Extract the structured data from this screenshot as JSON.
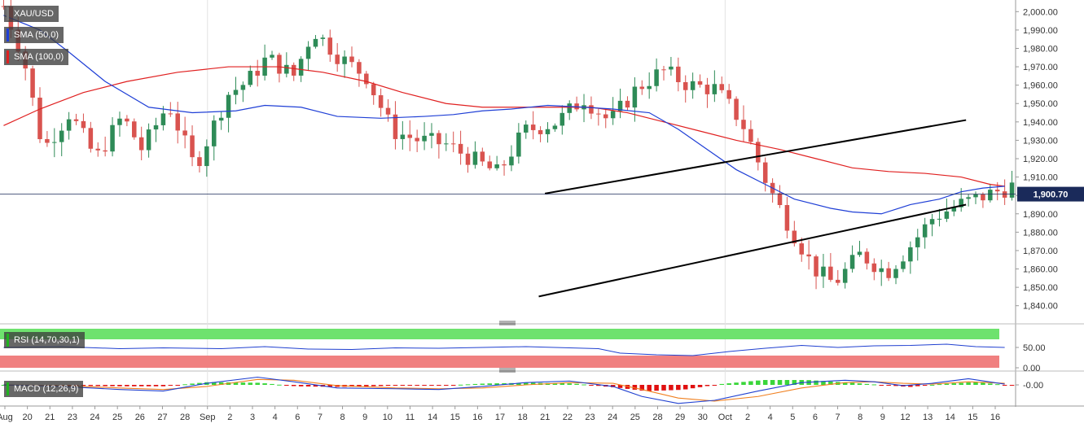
{
  "instrument": "XAU/USD",
  "current_price": "1,900.70",
  "indicators": {
    "sma50": "SMA (50,0)",
    "sma100": "SMA (100,0)",
    "rsi": "RSI (14,70,30,1)",
    "macd": "MACD (12,26,9)"
  },
  "colors": {
    "bull": "#2e8b57",
    "bear": "#d9534f",
    "sma50": "#1f3fd6",
    "sma100": "#e02020",
    "rsi_overbought": "#6ee26e",
    "rsi_oversold": "#f08080",
    "macd_line": "#2040d0",
    "signal_line": "#f08020"
  },
  "chart_data": [
    {
      "type": "candlestick",
      "title": "XAU/USD",
      "ylim": [
        1835,
        2005
      ],
      "y_ticks": [
        "2,000.00",
        "1,990.00",
        "1,980.00",
        "1,970.00",
        "1,960.00",
        "1,950.00",
        "1,940.00",
        "1,930.00",
        "1,920.00",
        "1,910.00",
        "1,900.00",
        "1,890.00",
        "1,880.00",
        "1,870.00",
        "1,860.00",
        "1,850.00",
        "1,840.00"
      ],
      "x_ticks": [
        "Aug",
        "20",
        "21",
        "23",
        "24",
        "25",
        "26",
        "27",
        "28",
        "Sep",
        "2",
        "3",
        "4",
        "6",
        "7",
        "8",
        "9",
        "10",
        "11",
        "14",
        "15",
        "16",
        "17",
        "18",
        "21",
        "22",
        "23",
        "24",
        "25",
        "28",
        "29",
        "30",
        "Oct",
        "2",
        "4",
        "5",
        "6",
        "7",
        "8",
        "9",
        "12",
        "13",
        "14",
        "15",
        "16"
      ],
      "current_price": 1900.7,
      "sma50": [
        [
          0,
          1998
        ],
        [
          5,
          1990
        ],
        [
          9,
          1978
        ],
        [
          14,
          1962
        ],
        [
          20,
          1948
        ],
        [
          26,
          1945
        ],
        [
          32,
          1946
        ],
        [
          36,
          1949
        ],
        [
          41,
          1948
        ],
        [
          46,
          1943
        ],
        [
          52,
          1942
        ],
        [
          58,
          1943
        ],
        [
          62,
          1944
        ],
        [
          66,
          1946
        ],
        [
          70,
          1947
        ],
        [
          75,
          1949
        ],
        [
          80,
          1948
        ],
        [
          84,
          1947
        ],
        [
          89,
          1945
        ],
        [
          93,
          1936
        ],
        [
          97,
          1925
        ],
        [
          101,
          1914
        ],
        [
          105,
          1906
        ],
        [
          109,
          1898
        ],
        [
          114,
          1893
        ],
        [
          117,
          1891
        ],
        [
          121,
          1890
        ],
        [
          125,
          1895
        ],
        [
          129,
          1898
        ],
        [
          132,
          1902
        ],
        [
          135,
          1904
        ],
        [
          138,
          1905
        ]
      ],
      "sma100": [
        [
          0,
          1938
        ],
        [
          5,
          1947
        ],
        [
          11,
          1956
        ],
        [
          17,
          1962
        ],
        [
          24,
          1967
        ],
        [
          31,
          1970
        ],
        [
          38,
          1970
        ],
        [
          44,
          1967
        ],
        [
          50,
          1962
        ],
        [
          55,
          1956
        ],
        [
          61,
          1950
        ],
        [
          66,
          1948
        ],
        [
          72,
          1948
        ],
        [
          77,
          1948
        ],
        [
          81,
          1948
        ],
        [
          86,
          1945
        ],
        [
          91,
          1940
        ],
        [
          96,
          1935
        ],
        [
          101,
          1930
        ],
        [
          107,
          1925
        ],
        [
          112,
          1920
        ],
        [
          117,
          1915
        ],
        [
          122,
          1913
        ],
        [
          127,
          1912
        ],
        [
          132,
          1910
        ],
        [
          136,
          1906
        ],
        [
          138,
          1905
        ]
      ],
      "channel_upper": [
        [
          88,
          1901
        ],
        [
          156,
          1941
        ]
      ],
      "channel_lower": [
        [
          87,
          1845
        ],
        [
          156,
          1895
        ]
      ]
    },
    {
      "type": "line",
      "title": "RSI (14,70,30,1)",
      "ylim": [
        0,
        100
      ],
      "y_ticks": [
        "50.00",
        "0.00"
      ],
      "overbought": 70,
      "oversold": 30,
      "values": [
        [
          0,
          50
        ],
        [
          8,
          52
        ],
        [
          16,
          47
        ],
        [
          22,
          49
        ],
        [
          30,
          47
        ],
        [
          36,
          52
        ],
        [
          42,
          46
        ],
        [
          48,
          45
        ],
        [
          54,
          49
        ],
        [
          60,
          48
        ],
        [
          66,
          50
        ],
        [
          72,
          52
        ],
        [
          76,
          50
        ],
        [
          82,
          47
        ],
        [
          85,
          36
        ],
        [
          90,
          32
        ],
        [
          95,
          30
        ],
        [
          100,
          40
        ],
        [
          105,
          48
        ],
        [
          110,
          55
        ],
        [
          115,
          50
        ],
        [
          120,
          54
        ],
        [
          125,
          55
        ],
        [
          130,
          58
        ],
        [
          134,
          52
        ],
        [
          138,
          50
        ]
      ]
    },
    {
      "type": "line",
      "title": "MACD (12,26,9)",
      "y_ticks": [
        "-0.00"
      ],
      "macd": [
        [
          0,
          0
        ],
        [
          8,
          -2
        ],
        [
          16,
          -6
        ],
        [
          22,
          -8
        ],
        [
          28,
          2
        ],
        [
          35,
          10
        ],
        [
          40,
          4
        ],
        [
          46,
          -4
        ],
        [
          54,
          -5
        ],
        [
          60,
          -6
        ],
        [
          66,
          -2
        ],
        [
          72,
          3
        ],
        [
          78,
          5
        ],
        [
          84,
          -2
        ],
        [
          88,
          -15
        ],
        [
          93,
          -24
        ],
        [
          98,
          -20
        ],
        [
          104,
          -8
        ],
        [
          110,
          3
        ],
        [
          116,
          6
        ],
        [
          120,
          4
        ],
        [
          124,
          -1
        ],
        [
          128,
          2
        ],
        [
          133,
          8
        ],
        [
          138,
          1
        ]
      ],
      "signal": [
        [
          0,
          0
        ],
        [
          8,
          -1
        ],
        [
          16,
          -4
        ],
        [
          22,
          -6
        ],
        [
          28,
          -2
        ],
        [
          35,
          7
        ],
        [
          40,
          6
        ],
        [
          46,
          -1
        ],
        [
          54,
          -4
        ],
        [
          60,
          -5
        ],
        [
          66,
          -4
        ],
        [
          72,
          0
        ],
        [
          78,
          3
        ],
        [
          84,
          2
        ],
        [
          88,
          -6
        ],
        [
          93,
          -17
        ],
        [
          98,
          -21
        ],
        [
          104,
          -15
        ],
        [
          110,
          -4
        ],
        [
          116,
          3
        ],
        [
          120,
          4
        ],
        [
          124,
          2
        ],
        [
          128,
          1
        ],
        [
          133,
          4
        ],
        [
          138,
          2
        ]
      ]
    }
  ]
}
